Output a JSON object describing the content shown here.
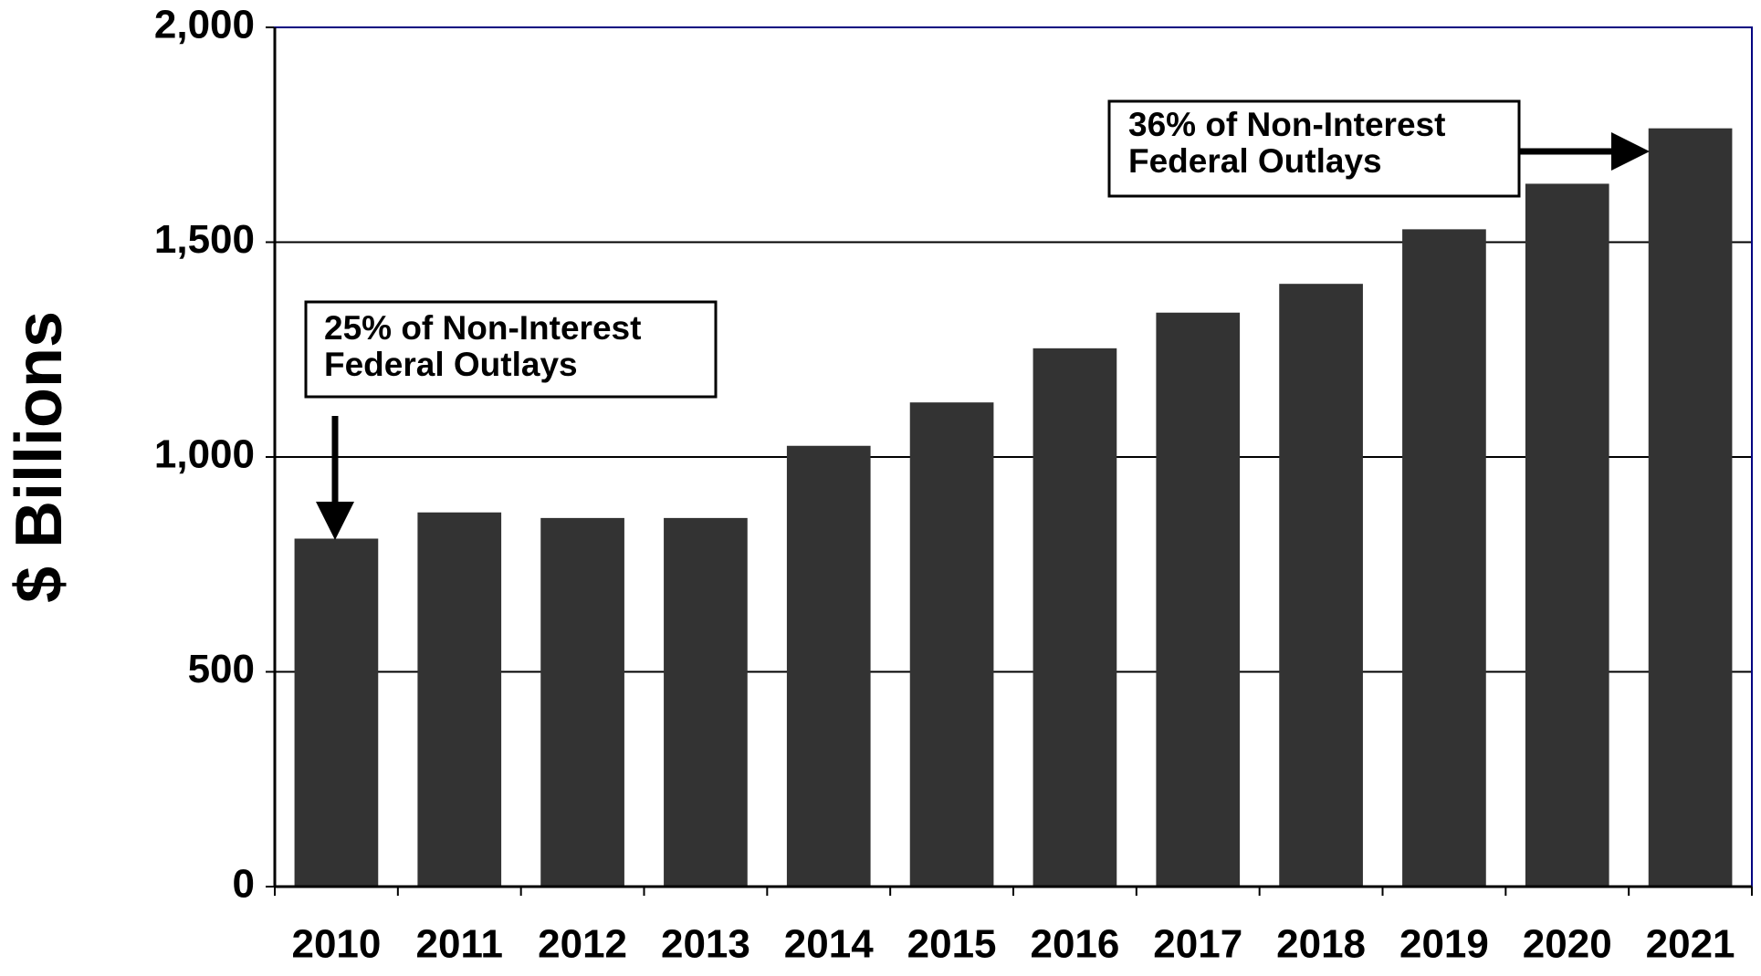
{
  "chart_data": {
    "type": "bar",
    "y_label": "$ Billions",
    "categories": [
      "2010",
      "2011",
      "2012",
      "2013",
      "2014",
      "2015",
      "2016",
      "2017",
      "2018",
      "2019",
      "2020",
      "2021"
    ],
    "values": [
      810,
      871,
      858,
      858,
      1026,
      1127,
      1253,
      1336,
      1403,
      1530,
      1636,
      1765
    ],
    "color": "#333333",
    "ylim": [
      0,
      2000
    ],
    "yticks": [
      0,
      500,
      {
        "value": 1000,
        "label": "1,000"
      },
      {
        "value": 1500,
        "label": "1,500"
      },
      {
        "value": 2000,
        "label": "2,000"
      }
    ],
    "grid": true,
    "annotations": [
      {
        "lines": [
          "25% of Non-Interest",
          "Federal Outlays"
        ]
      },
      {
        "lines": [
          "36% of Non-Interest",
          "Federal Outlays"
        ]
      }
    ]
  }
}
